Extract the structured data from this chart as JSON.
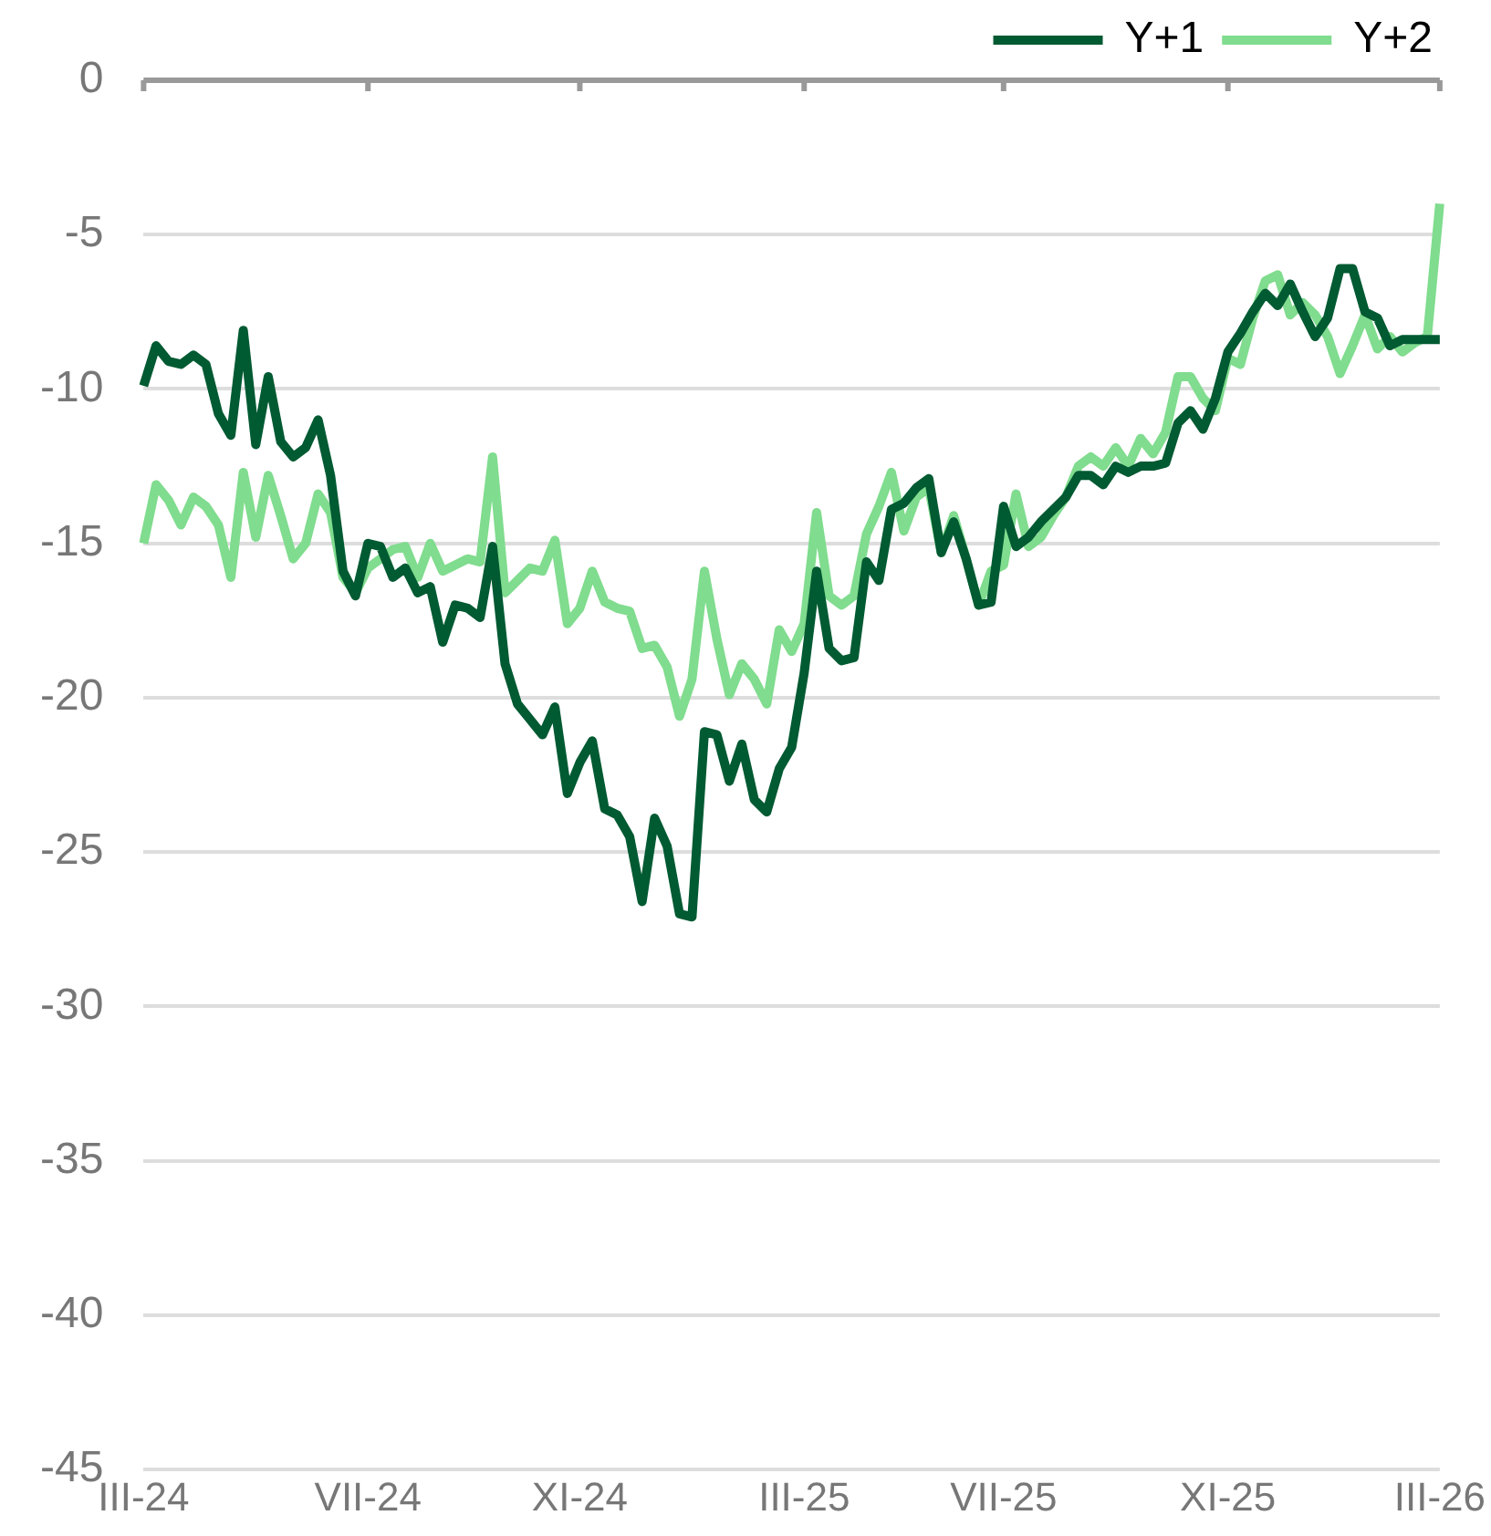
{
  "chart_data": {
    "type": "line",
    "categories": [
      "III-24",
      null,
      null,
      null,
      null,
      null,
      null,
      null,
      null,
      null,
      null,
      null,
      null,
      null,
      null,
      null,
      null,
      null,
      "VII-24",
      null,
      null,
      null,
      null,
      null,
      null,
      null,
      null,
      null,
      null,
      null,
      null,
      null,
      null,
      null,
      null,
      "XI-24",
      null,
      null,
      null,
      null,
      null,
      null,
      null,
      null,
      null,
      null,
      null,
      null,
      null,
      null,
      null,
      null,
      null,
      "III-25",
      null,
      null,
      null,
      null,
      null,
      null,
      null,
      null,
      null,
      null,
      null,
      null,
      null,
      null,
      null,
      "VII-25",
      null,
      null,
      null,
      null,
      null,
      null,
      null,
      null,
      null,
      null,
      null,
      null,
      null,
      null,
      null,
      null,
      null,
      "XI-25",
      null,
      null,
      null,
      null,
      null,
      null,
      null,
      null,
      null,
      null,
      null,
      null,
      null,
      null,
      null,
      null,
      "III-26"
    ],
    "series": [
      {
        "name": "Y+1",
        "color": "#005a32",
        "values": [
          -9.9,
          -8.6,
          -9.1,
          -9.2,
          -8.9,
          -9.2,
          -10.8,
          -11.5,
          -8.1,
          -11.8,
          -9.6,
          -11.7,
          -12.2,
          -11.9,
          -11.0,
          -12.8,
          -15.9,
          -16.7,
          -15.0,
          -15.1,
          -16.1,
          -15.8,
          -16.6,
          -16.4,
          -18.2,
          -17.0,
          -17.1,
          -17.4,
          -15.1,
          -18.9,
          -20.2,
          -20.7,
          -21.2,
          -20.3,
          -23.1,
          -22.1,
          -21.4,
          -23.6,
          -23.8,
          -24.5,
          -26.6,
          -23.9,
          -24.8,
          -27.0,
          -27.1,
          -21.1,
          -21.2,
          -22.7,
          -21.5,
          -23.3,
          -23.7,
          -22.3,
          -21.6,
          -19.2,
          -15.9,
          -18.4,
          -18.8,
          -18.7,
          -15.6,
          -16.2,
          -13.9,
          -13.7,
          -13.2,
          -12.9,
          -15.3,
          -14.3,
          -15.5,
          -17.0,
          -16.9,
          -13.8,
          -15.1,
          -14.8,
          -14.3,
          -13.9,
          -13.5,
          -12.8,
          -12.8,
          -13.1,
          -12.5,
          -12.7,
          -12.5,
          -12.5,
          -12.4,
          -11.1,
          -10.7,
          -11.3,
          -10.3,
          -8.8,
          -8.2,
          -7.5,
          -6.9,
          -7.3,
          -6.6,
          -7.5,
          -8.3,
          -7.7,
          -6.1,
          -6.1,
          -7.5,
          -7.7,
          -8.6,
          -8.4,
          -8.4,
          -8.4,
          -8.4
        ]
      },
      {
        "name": "Y+2",
        "color": "#80dc8e",
        "values": [
          -15.0,
          -13.1,
          -13.6,
          -14.4,
          -13.5,
          -13.8,
          -14.4,
          -16.1,
          -12.7,
          -14.8,
          -12.8,
          -14.1,
          -15.5,
          -15.0,
          -13.4,
          -14.0,
          -16.1,
          -16.6,
          -15.8,
          -15.5,
          -15.2,
          -15.1,
          -16.1,
          -15.0,
          -15.9,
          -15.7,
          -15.5,
          -15.6,
          -12.2,
          -16.6,
          -16.2,
          -15.8,
          -15.9,
          -14.9,
          -17.6,
          -17.1,
          -15.9,
          -16.9,
          -17.1,
          -17.2,
          -18.4,
          -18.3,
          -19.0,
          -20.6,
          -19.4,
          -15.9,
          -18.1,
          -19.9,
          -18.9,
          -19.4,
          -20.2,
          -17.8,
          -18.5,
          -17.6,
          -14.0,
          -16.7,
          -17.0,
          -16.7,
          -14.7,
          -13.8,
          -12.7,
          -14.6,
          -13.5,
          -13.2,
          -15.3,
          -14.1,
          -15.5,
          -17.0,
          -15.9,
          -15.7,
          -13.4,
          -15.1,
          -14.8,
          -14.1,
          -13.5,
          -12.5,
          -12.2,
          -12.5,
          -11.9,
          -12.5,
          -11.6,
          -12.1,
          -11.4,
          -9.6,
          -9.6,
          -10.3,
          -10.7,
          -9.0,
          -9.2,
          -7.7,
          -6.5,
          -6.3,
          -7.6,
          -7.2,
          -7.6,
          -8.3,
          -9.5,
          -8.6,
          -7.6,
          -8.7,
          -8.3,
          -8.8,
          -8.5,
          -8.3,
          -4.0
        ]
      }
    ],
    "ylim": [
      -45,
      0
    ],
    "yticks": [
      0,
      -5,
      -10,
      -15,
      -20,
      -25,
      -30,
      -35,
      -40,
      -45
    ],
    "grid": "y",
    "legend": "top right",
    "marker": "none",
    "line_style": "solid"
  }
}
